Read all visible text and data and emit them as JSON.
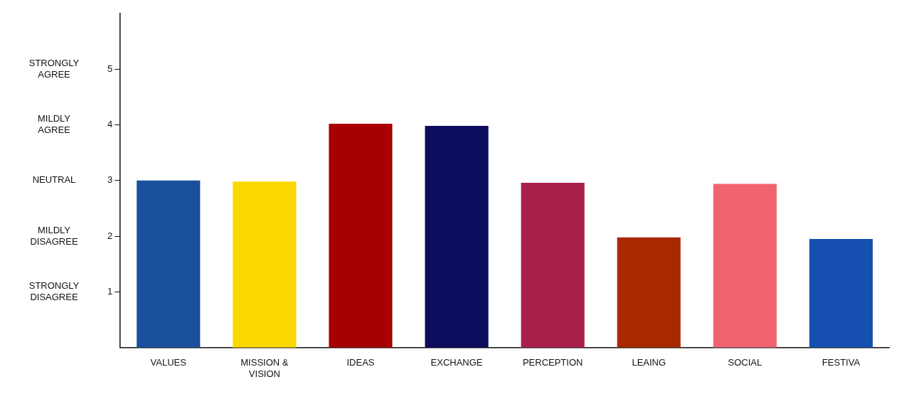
{
  "chart_data": {
    "type": "bar",
    "categories": [
      "VALUES",
      "MISSION & VISION",
      "IDEAS",
      "EXCHANGE",
      "PERCEPTION",
      "LEAING",
      "SOCIAL",
      "FESTIVA"
    ],
    "values": [
      3,
      2.98,
      4.02,
      3.98,
      2.96,
      1.98,
      2.94,
      1.95
    ],
    "colors": [
      "#1a4f9c",
      "#fbd800",
      "#a80000",
      "#0d0c5c",
      "#a8204a",
      "#a82800",
      "#f06470",
      "#1550b0"
    ],
    "ylim": [
      0,
      6
    ],
    "yticks": [
      1,
      2,
      3,
      4,
      5
    ],
    "grid": false,
    "legend": false,
    "annotations": [
      "STRONGLY AGREE",
      "MILDLY AGREE",
      "NEUTRAL",
      "MILDLY DISAGREE",
      "STRONGLY DISAGREE"
    ]
  }
}
